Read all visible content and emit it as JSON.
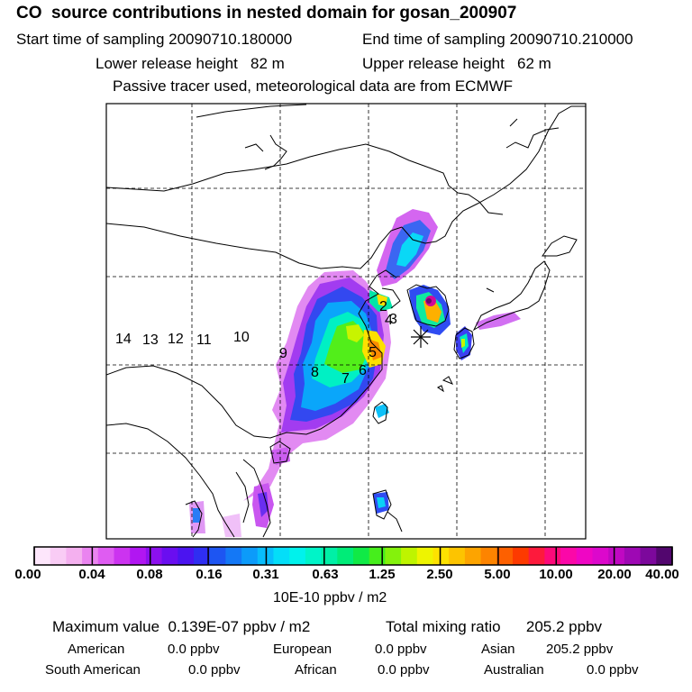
{
  "header": {
    "title": "CO  source contributions in nested domain for gosan_200907",
    "start_label": "Start time of sampling 20090710.180000",
    "end_label": "End time of sampling 20090710.210000",
    "lower_height": "Lower release height   82 m",
    "upper_height": "Upper release height   62 m",
    "note": "Passive tracer used, meteorological data are from ECMWF"
  },
  "map": {
    "region_labels": [
      "14",
      "13",
      "12",
      "11",
      "10",
      "9",
      "8",
      "7",
      "6",
      "5",
      "4",
      "3",
      "2"
    ],
    "receptor_marker": "station-star"
  },
  "colorbar": {
    "colors": [
      "#fde6fb",
      "#f9ccf5",
      "#f4b0ef",
      "#ea84f0",
      "#df5cf2",
      "#cc33f0",
      "#b116f2",
      "#8c10ee",
      "#6a0ef0",
      "#4b14f0",
      "#2f2ef2",
      "#1d55f2",
      "#1478f6",
      "#0c9bfa",
      "#08bdfc",
      "#04def8",
      "#00f2ec",
      "#00f4c8",
      "#00f0a6",
      "#00ec78",
      "#10ea46",
      "#46ee1c",
      "#84f20c",
      "#bef400",
      "#eef400",
      "#fde200",
      "#fdc400",
      "#fda400",
      "#fd8400",
      "#fd6000",
      "#fd3a00",
      "#fd1a3c",
      "#fd0a7a",
      "#fb08a8",
      "#ef06c4",
      "#dc08cc",
      "#c008c2",
      "#9e08b4",
      "#7c089c",
      "#52066e"
    ],
    "tick_labels": [
      "0.00",
      "0.04",
      "0.08",
      "0.16",
      "0.31",
      "0.63",
      "1.25",
      "2.50",
      "5.00",
      "10.00",
      "20.00",
      "40.00"
    ],
    "units": "10E-10 ppbv / m2"
  },
  "summary": {
    "max_value": "Maximum value  0.139E-07 ppbv / m2",
    "total_mixing": "Total mixing ratio      205.2 ppbv",
    "rows": [
      [
        {
          "name": "American",
          "value": "0.0 ppbv"
        },
        {
          "name": "European",
          "value": "0.0 ppbv"
        },
        {
          "name": "Asian",
          "value": "205.2 ppbv"
        }
      ],
      [
        {
          "name": "South American",
          "value": "0.0 ppbv"
        },
        {
          "name": "African",
          "value": "0.0 ppbv"
        },
        {
          "name": "Australian",
          "value": "0.0 ppbv"
        }
      ]
    ]
  }
}
